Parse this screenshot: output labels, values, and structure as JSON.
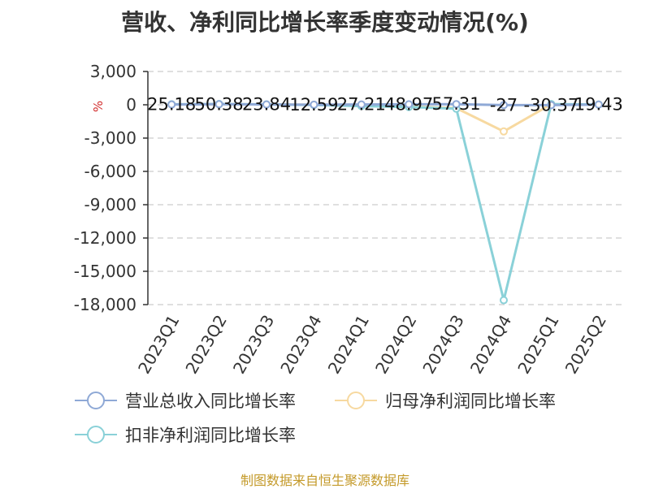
{
  "chart_data": {
    "type": "line",
    "title": "营收、净利同比增长率季度变动情况(%)",
    "ylabel": "%",
    "ylim": [
      -18000,
      3000
    ],
    "yticks": [
      3000,
      0,
      -3000,
      -6000,
      -9000,
      -12000,
      -15000,
      -18000
    ],
    "ytick_labels": [
      "3,000",
      "0",
      "-3,000",
      "-6,000",
      "-9,000",
      "-12,000",
      "-15,000",
      "-18,000"
    ],
    "grid": true,
    "legend_position": "bottom",
    "categories": [
      "2023Q1",
      "2023Q2",
      "2023Q3",
      "2023Q4",
      "2024Q1",
      "2024Q2",
      "2024Q3",
      "2024Q4",
      "2025Q1",
      "2025Q2"
    ],
    "series": [
      {
        "name": "营业总收入同比增长率",
        "color": "#8fa9d6",
        "values": [
          25.18,
          50.38,
          23.84,
          12.59,
          27.21,
          48.97,
          57.31,
          -27,
          -30.37,
          19.43
        ]
      },
      {
        "name": "归母净利润同比增长率",
        "color": "#f7d9a0",
        "values": [
          40,
          60,
          30,
          10,
          -80,
          -150,
          -300,
          -2400,
          50,
          30
        ]
      },
      {
        "name": "扣非净利润同比增长率",
        "color": "#8ad1d8",
        "values": [
          45,
          70,
          35,
          -20,
          -120,
          -200,
          -350,
          -17600,
          60,
          25
        ]
      }
    ],
    "data_labels": [
      "25.18",
      "50.38",
      "23.84",
      "12.59",
      "27.21",
      "48.97",
      "57.31",
      "-27",
      "-30.37",
      "19.43"
    ]
  },
  "footer": {
    "source": "制图数据来自恒生聚源数据库"
  }
}
